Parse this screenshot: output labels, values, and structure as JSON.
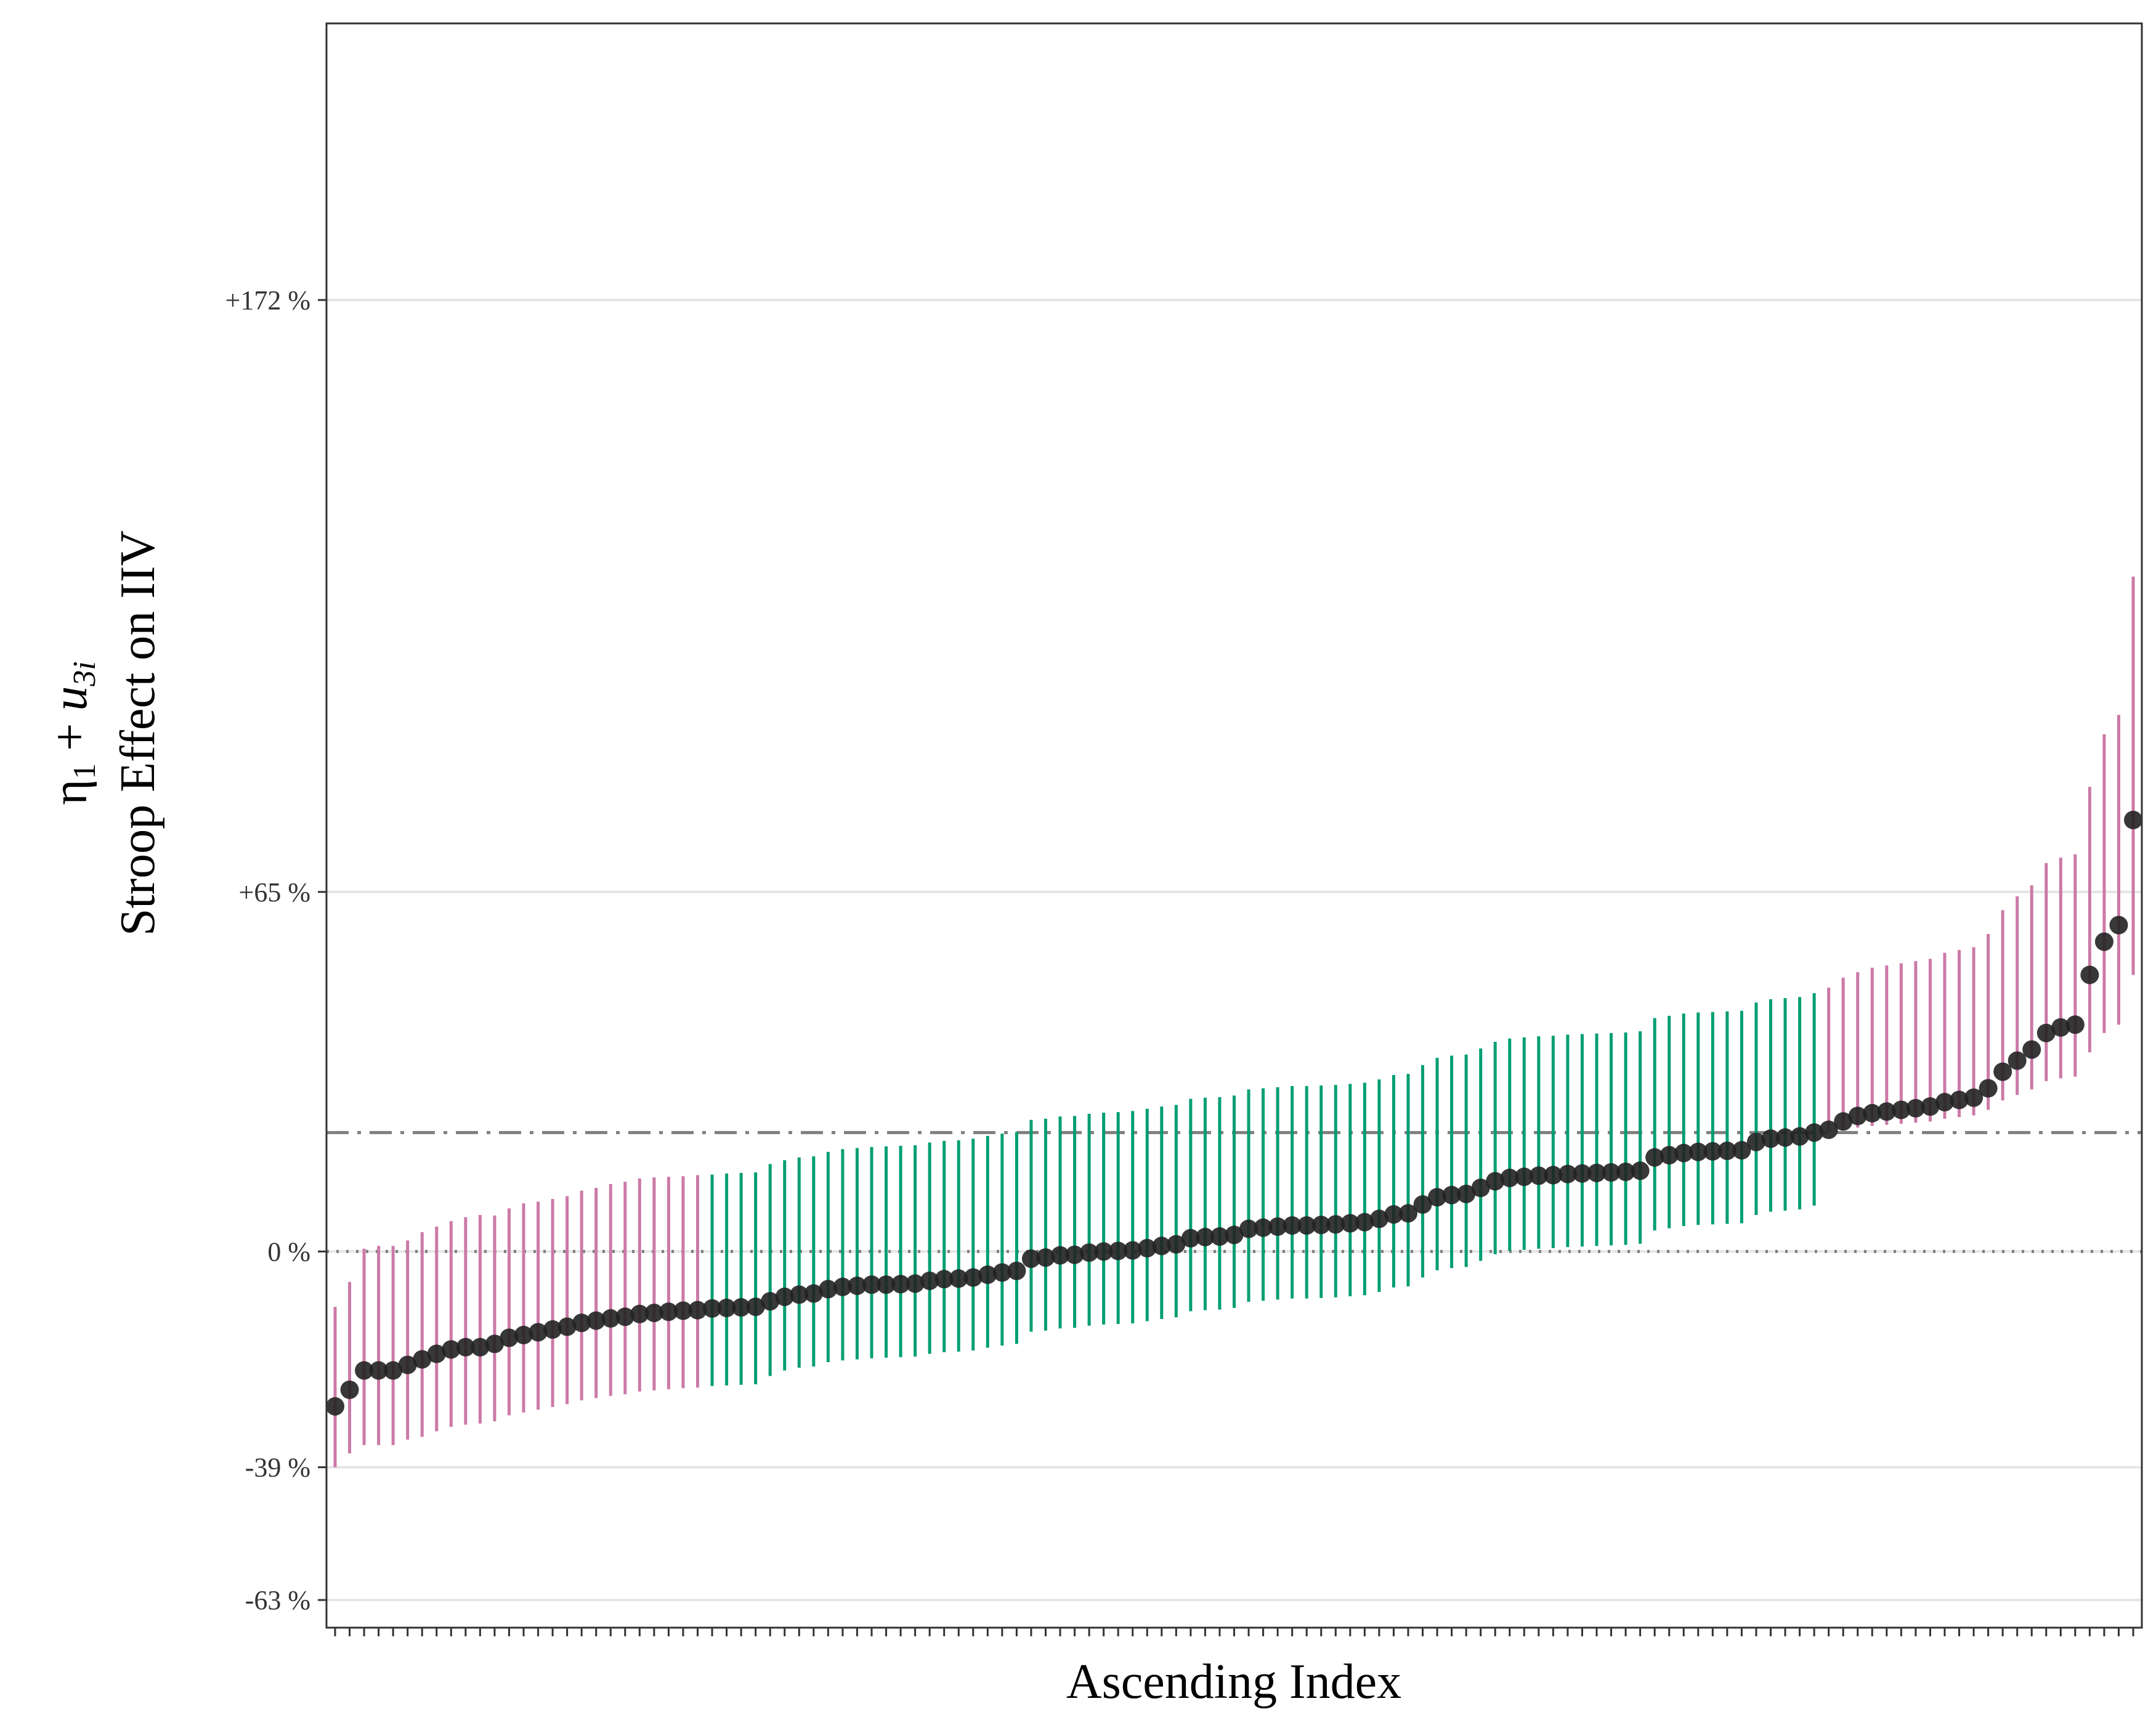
{
  "chart_data": {
    "type": "scatter",
    "title": "",
    "xlabel": "Ascending Index",
    "ylabel_line1_prefix": "η",
    "ylabel_line1_sub1": "1",
    "ylabel_line1_mid": " + ",
    "ylabel_line1_u": "u",
    "ylabel_line1_sub2": "3i",
    "ylabel_line2": "Stroop Effect on IIV",
    "yticks": [
      {
        "value": 172,
        "label": "+172 %"
      },
      {
        "value": 65,
        "label": "+65 %"
      },
      {
        "value": 0,
        "label": "0 %"
      },
      {
        "value": -39,
        "label": "-39 %"
      },
      {
        "value": -63,
        "label": "-63 %"
      }
    ],
    "ylim": [
      -68,
      222
    ],
    "grid": true,
    "reference_lines": [
      {
        "value": 0,
        "style": "dotted"
      },
      {
        "value": 21.5,
        "style": "dashdot"
      }
    ],
    "colors": {
      "credible": "#009E73",
      "not_credible": "#CC79A7",
      "point": "#222222",
      "grid": "#E5E5E5",
      "reference": "#7F7F7F"
    },
    "points": [
      {
        "x": 1,
        "y": -28,
        "lo": -39,
        "hi": -10,
        "group": "pink"
      },
      {
        "x": 2,
        "y": -25,
        "lo": -36.5,
        "hi": -5.5,
        "group": "pink"
      },
      {
        "x": 3,
        "y": -21.5,
        "lo": -35,
        "hi": 0.5,
        "group": "pink"
      },
      {
        "x": 4,
        "y": -21.5,
        "lo": -35,
        "hi": 1,
        "group": "pink"
      },
      {
        "x": 5,
        "y": -21.5,
        "lo": -35,
        "hi": 1,
        "group": "pink"
      },
      {
        "x": 6,
        "y": -20.5,
        "lo": -34,
        "hi": 2,
        "group": "pink"
      },
      {
        "x": 7,
        "y": -19.5,
        "lo": -33.5,
        "hi": 3.5,
        "group": "pink"
      },
      {
        "x": 8,
        "y": -18.5,
        "lo": -32.5,
        "hi": 4.5,
        "group": "pink"
      },
      {
        "x": 9,
        "y": -17.7,
        "lo": -31.7,
        "hi": 5.5,
        "group": "pink"
      },
      {
        "x": 10,
        "y": -17.3,
        "lo": -31.3,
        "hi": 6.2,
        "group": "pink"
      },
      {
        "x": 11,
        "y": -17.3,
        "lo": -31.1,
        "hi": 6.6,
        "group": "pink"
      },
      {
        "x": 12,
        "y": -16.7,
        "lo": -30.7,
        "hi": 6.5,
        "group": "pink"
      },
      {
        "x": 13,
        "y": -15.6,
        "lo": -29.6,
        "hi": 7.8,
        "group": "pink"
      },
      {
        "x": 14,
        "y": -15.1,
        "lo": -29.1,
        "hi": 8.7,
        "group": "pink"
      },
      {
        "x": 15,
        "y": -14.6,
        "lo": -28.6,
        "hi": 9.0,
        "group": "pink"
      },
      {
        "x": 16,
        "y": -14.1,
        "lo": -28.1,
        "hi": 9.5,
        "group": "pink"
      },
      {
        "x": 17,
        "y": -13.6,
        "lo": -27.6,
        "hi": 10.0,
        "group": "pink"
      },
      {
        "x": 18,
        "y": -12.9,
        "lo": -26.9,
        "hi": 11.0,
        "group": "pink"
      },
      {
        "x": 19,
        "y": -12.5,
        "lo": -26.5,
        "hi": 11.5,
        "group": "pink"
      },
      {
        "x": 20,
        "y": -12.1,
        "lo": -26.1,
        "hi": 12.2,
        "group": "pink"
      },
      {
        "x": 21,
        "y": -11.8,
        "lo": -25.8,
        "hi": 12.6,
        "group": "pink"
      },
      {
        "x": 22,
        "y": -11.3,
        "lo": -25.3,
        "hi": 13.2,
        "group": "pink"
      },
      {
        "x": 23,
        "y": -11.1,
        "lo": -25.1,
        "hi": 13.4,
        "group": "pink"
      },
      {
        "x": 24,
        "y": -10.9,
        "lo": -24.9,
        "hi": 13.5,
        "group": "pink"
      },
      {
        "x": 25,
        "y": -10.7,
        "lo": -24.7,
        "hi": 13.6,
        "group": "pink"
      },
      {
        "x": 26,
        "y": -10.6,
        "lo": -24.6,
        "hi": 13.8,
        "group": "pink"
      },
      {
        "x": 27,
        "y": -10.3,
        "lo": -24.3,
        "hi": 13.9,
        "group": "green"
      },
      {
        "x": 28,
        "y": -10.2,
        "lo": -24.2,
        "hi": 14.1,
        "group": "green"
      },
      {
        "x": 29,
        "y": -10.1,
        "lo": -24.1,
        "hi": 14.2,
        "group": "green"
      },
      {
        "x": 30,
        "y": -10.0,
        "lo": -24.0,
        "hi": 14.3,
        "group": "green"
      },
      {
        "x": 31,
        "y": -9.0,
        "lo": -22.5,
        "hi": 15.8,
        "group": "green"
      },
      {
        "x": 32,
        "y": -8.2,
        "lo": -21.5,
        "hi": 16.5,
        "group": "green"
      },
      {
        "x": 33,
        "y": -7.8,
        "lo": -21.0,
        "hi": 17.0,
        "group": "green"
      },
      {
        "x": 34,
        "y": -7.6,
        "lo": -20.8,
        "hi": 17.2,
        "group": "green"
      },
      {
        "x": 35,
        "y": -6.8,
        "lo": -20.0,
        "hi": 18.0,
        "group": "green"
      },
      {
        "x": 36,
        "y": -6.4,
        "lo": -19.7,
        "hi": 18.5,
        "group": "green"
      },
      {
        "x": 37,
        "y": -6.2,
        "lo": -19.5,
        "hi": 18.7,
        "group": "green"
      },
      {
        "x": 38,
        "y": -6.0,
        "lo": -19.3,
        "hi": 18.9,
        "group": "green"
      },
      {
        "x": 39,
        "y": -6.0,
        "lo": -19.2,
        "hi": 19.0,
        "group": "green"
      },
      {
        "x": 40,
        "y": -5.9,
        "lo": -19.1,
        "hi": 19.1,
        "group": "green"
      },
      {
        "x": 41,
        "y": -5.8,
        "lo": -19.0,
        "hi": 19.2,
        "group": "green"
      },
      {
        "x": 42,
        "y": -5.3,
        "lo": -18.5,
        "hi": 19.7,
        "group": "green"
      },
      {
        "x": 43,
        "y": -5.0,
        "lo": -18.2,
        "hi": 20.0,
        "group": "green"
      },
      {
        "x": 44,
        "y": -4.9,
        "lo": -18.1,
        "hi": 20.1,
        "group": "green"
      },
      {
        "x": 45,
        "y": -4.7,
        "lo": -17.9,
        "hi": 20.4,
        "group": "green"
      },
      {
        "x": 46,
        "y": -4.2,
        "lo": -17.4,
        "hi": 20.9,
        "group": "green"
      },
      {
        "x": 47,
        "y": -3.8,
        "lo": -17.0,
        "hi": 21.3,
        "group": "green"
      },
      {
        "x": 48,
        "y": -3.5,
        "lo": -16.7,
        "hi": 21.6,
        "group": "green"
      },
      {
        "x": 49,
        "y": -1.3,
        "lo": -14.5,
        "hi": 23.8,
        "group": "green"
      },
      {
        "x": 50,
        "y": -1.1,
        "lo": -14.3,
        "hi": 24.0,
        "group": "green"
      },
      {
        "x": 51,
        "y": -0.7,
        "lo": -13.9,
        "hi": 24.4,
        "group": "green"
      },
      {
        "x": 52,
        "y": -0.6,
        "lo": -13.8,
        "hi": 24.5,
        "group": "green"
      },
      {
        "x": 53,
        "y": -0.2,
        "lo": -13.4,
        "hi": 24.9,
        "group": "green"
      },
      {
        "x": 54,
        "y": 0.0,
        "lo": -13.2,
        "hi": 25.1,
        "group": "green"
      },
      {
        "x": 55,
        "y": 0.1,
        "lo": -13.1,
        "hi": 25.2,
        "group": "green"
      },
      {
        "x": 56,
        "y": 0.2,
        "lo": -13.0,
        "hi": 25.4,
        "group": "green"
      },
      {
        "x": 57,
        "y": 0.6,
        "lo": -12.6,
        "hi": 25.8,
        "group": "green"
      },
      {
        "x": 58,
        "y": 1.0,
        "lo": -12.2,
        "hi": 26.2,
        "group": "green"
      },
      {
        "x": 59,
        "y": 1.3,
        "lo": -11.9,
        "hi": 26.5,
        "group": "green"
      },
      {
        "x": 60,
        "y": 2.4,
        "lo": -10.8,
        "hi": 27.6,
        "group": "green"
      },
      {
        "x": 61,
        "y": 2.6,
        "lo": -10.6,
        "hi": 27.8,
        "group": "green"
      },
      {
        "x": 62,
        "y": 2.7,
        "lo": -10.5,
        "hi": 27.9,
        "group": "green"
      },
      {
        "x": 63,
        "y": 3.0,
        "lo": -10.2,
        "hi": 28.2,
        "group": "green"
      },
      {
        "x": 64,
        "y": 4.1,
        "lo": -9.1,
        "hi": 29.3,
        "group": "green"
      },
      {
        "x": 65,
        "y": 4.3,
        "lo": -8.9,
        "hi": 29.5,
        "group": "green"
      },
      {
        "x": 66,
        "y": 4.5,
        "lo": -8.7,
        "hi": 29.7,
        "group": "green"
      },
      {
        "x": 67,
        "y": 4.7,
        "lo": -8.5,
        "hi": 29.9,
        "group": "green"
      },
      {
        "x": 68,
        "y": 4.7,
        "lo": -8.5,
        "hi": 29.9,
        "group": "green"
      },
      {
        "x": 69,
        "y": 4.8,
        "lo": -8.4,
        "hi": 30.0,
        "group": "green"
      },
      {
        "x": 70,
        "y": 4.9,
        "lo": -8.3,
        "hi": 30.1,
        "group": "green"
      },
      {
        "x": 71,
        "y": 5.1,
        "lo": -8.1,
        "hi": 30.3,
        "group": "green"
      },
      {
        "x": 72,
        "y": 5.3,
        "lo": -7.9,
        "hi": 30.5,
        "group": "green"
      },
      {
        "x": 73,
        "y": 5.9,
        "lo": -7.3,
        "hi": 31.1,
        "group": "green"
      },
      {
        "x": 74,
        "y": 6.7,
        "lo": -6.5,
        "hi": 31.9,
        "group": "green"
      },
      {
        "x": 75,
        "y": 6.9,
        "lo": -6.3,
        "hi": 32.1,
        "group": "green"
      },
      {
        "x": 76,
        "y": 8.5,
        "lo": -4.7,
        "hi": 33.7,
        "group": "green"
      },
      {
        "x": 77,
        "y": 9.8,
        "lo": -3.4,
        "hi": 35.0,
        "group": "green"
      },
      {
        "x": 78,
        "y": 10.2,
        "lo": -3.0,
        "hi": 35.4,
        "group": "green"
      },
      {
        "x": 79,
        "y": 10.4,
        "lo": -2.8,
        "hi": 35.6,
        "group": "green"
      },
      {
        "x": 80,
        "y": 11.5,
        "lo": -1.7,
        "hi": 36.7,
        "group": "green"
      },
      {
        "x": 81,
        "y": 12.7,
        "lo": -0.5,
        "hi": 37.9,
        "group": "green"
      },
      {
        "x": 82,
        "y": 13.3,
        "lo": 0.1,
        "hi": 38.5,
        "group": "green"
      },
      {
        "x": 83,
        "y": 13.5,
        "lo": 0.3,
        "hi": 38.7,
        "group": "green"
      },
      {
        "x": 84,
        "y": 13.7,
        "lo": 0.5,
        "hi": 38.9,
        "group": "green"
      },
      {
        "x": 85,
        "y": 13.8,
        "lo": 0.6,
        "hi": 39.0,
        "group": "green"
      },
      {
        "x": 86,
        "y": 14.0,
        "lo": 0.8,
        "hi": 39.2,
        "group": "green"
      },
      {
        "x": 87,
        "y": 14.1,
        "lo": 0.9,
        "hi": 39.3,
        "group": "green"
      },
      {
        "x": 88,
        "y": 14.2,
        "lo": 1.0,
        "hi": 39.4,
        "group": "green"
      },
      {
        "x": 89,
        "y": 14.3,
        "lo": 1.1,
        "hi": 39.5,
        "group": "green"
      },
      {
        "x": 90,
        "y": 14.4,
        "lo": 1.2,
        "hi": 39.6,
        "group": "green"
      },
      {
        "x": 91,
        "y": 14.6,
        "lo": 1.4,
        "hi": 39.8,
        "group": "green"
      },
      {
        "x": 92,
        "y": 17.0,
        "lo": 3.8,
        "hi": 42.2,
        "group": "green"
      },
      {
        "x": 93,
        "y": 17.4,
        "lo": 4.2,
        "hi": 42.6,
        "group": "green"
      },
      {
        "x": 94,
        "y": 17.8,
        "lo": 4.6,
        "hi": 43.0,
        "group": "green"
      },
      {
        "x": 95,
        "y": 18.0,
        "lo": 4.8,
        "hi": 43.2,
        "group": "green"
      },
      {
        "x": 96,
        "y": 18.1,
        "lo": 4.9,
        "hi": 43.3,
        "group": "green"
      },
      {
        "x": 97,
        "y": 18.2,
        "lo": 5.0,
        "hi": 43.4,
        "group": "green"
      },
      {
        "x": 98,
        "y": 18.3,
        "lo": 5.1,
        "hi": 43.5,
        "group": "green"
      },
      {
        "x": 99,
        "y": 19.8,
        "lo": 6.6,
        "hi": 45.0,
        "group": "green"
      },
      {
        "x": 100,
        "y": 20.4,
        "lo": 7.2,
        "hi": 45.6,
        "group": "green"
      },
      {
        "x": 101,
        "y": 20.6,
        "lo": 7.4,
        "hi": 45.8,
        "group": "green"
      },
      {
        "x": 102,
        "y": 20.8,
        "lo": 7.6,
        "hi": 46.0,
        "group": "green"
      },
      {
        "x": 103,
        "y": 21.5,
        "lo": 8.3,
        "hi": 46.7,
        "group": "green"
      },
      {
        "x": 104,
        "y": 22.0,
        "lo": 21.6,
        "hi": 47.7,
        "group": "pink"
      },
      {
        "x": 105,
        "y": 23.5,
        "lo": 22.0,
        "hi": 49.5,
        "group": "pink"
      },
      {
        "x": 106,
        "y": 24.5,
        "lo": 22.4,
        "hi": 50.5,
        "group": "pink"
      },
      {
        "x": 107,
        "y": 25.0,
        "lo": 22.7,
        "hi": 51.3,
        "group": "pink"
      },
      {
        "x": 108,
        "y": 25.3,
        "lo": 22.9,
        "hi": 51.7,
        "group": "pink"
      },
      {
        "x": 109,
        "y": 25.6,
        "lo": 23.1,
        "hi": 52.1,
        "group": "pink"
      },
      {
        "x": 110,
        "y": 25.9,
        "lo": 23.3,
        "hi": 52.5,
        "group": "pink"
      },
      {
        "x": 111,
        "y": 26.2,
        "lo": 23.5,
        "hi": 52.9,
        "group": "pink"
      },
      {
        "x": 112,
        "y": 27.0,
        "lo": 24.0,
        "hi": 54.0,
        "group": "pink"
      },
      {
        "x": 113,
        "y": 27.4,
        "lo": 24.3,
        "hi": 54.5,
        "group": "pink"
      },
      {
        "x": 114,
        "y": 27.8,
        "lo": 24.6,
        "hi": 55.0,
        "group": "pink"
      },
      {
        "x": 115,
        "y": 29.5,
        "lo": 25.6,
        "hi": 57.4,
        "group": "pink"
      },
      {
        "x": 116,
        "y": 32.5,
        "lo": 27.3,
        "hi": 61.7,
        "group": "pink"
      },
      {
        "x": 117,
        "y": 34.5,
        "lo": 28.3,
        "hi": 64.2,
        "group": "pink"
      },
      {
        "x": 118,
        "y": 36.5,
        "lo": 29.3,
        "hi": 66.2,
        "group": "pink"
      },
      {
        "x": 119,
        "y": 39.5,
        "lo": 30.8,
        "hi": 70.2,
        "group": "pink"
      },
      {
        "x": 120,
        "y": 40.5,
        "lo": 31.3,
        "hi": 71.2,
        "group": "pink"
      },
      {
        "x": 121,
        "y": 41.0,
        "lo": 31.6,
        "hi": 71.8,
        "group": "pink"
      },
      {
        "x": 122,
        "y": 50.0,
        "lo": 36.0,
        "hi": 84.0,
        "group": "pink"
      },
      {
        "x": 123,
        "y": 56.0,
        "lo": 39.5,
        "hi": 93.5,
        "group": "pink"
      },
      {
        "x": 124,
        "y": 59.0,
        "lo": 41.0,
        "hi": 97.0,
        "group": "pink"
      },
      {
        "x": 125,
        "y": 78.0,
        "lo": 50.0,
        "hi": 122.0,
        "group": "pink"
      }
    ]
  }
}
